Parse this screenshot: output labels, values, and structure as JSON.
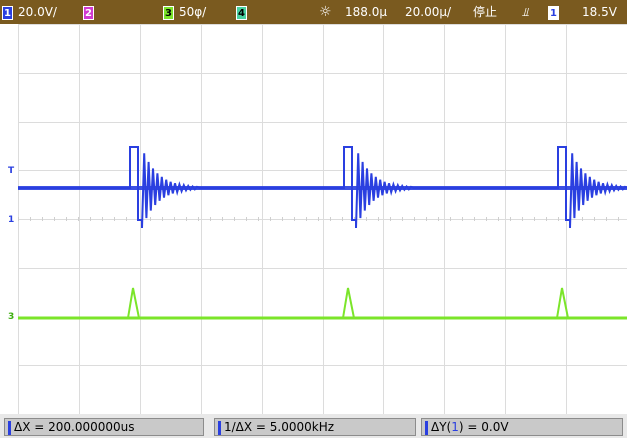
{
  "topbar": {
    "ch1_badge": "1",
    "ch1_scale": "20.0V/",
    "ch2_badge": "2",
    "ch3_badge": "3",
    "ch3_scale": "50φ/",
    "ch4_badge": "4",
    "trigger_icon": "sun-icon",
    "time_offset": "188.0µ",
    "time_scale": "20.00µ/",
    "status": "停止",
    "edge_icon": "rising-edge-icon",
    "edge_glyph": "⫫",
    "trig_ch_badge": "1",
    "trig_level": "18.5V"
  },
  "markers": {
    "trigger_T": "T",
    "ch1": "1",
    "ch3": "3"
  },
  "cursors": {
    "delta_x": "ΔX = 200.000000us",
    "inv_delta_x": "1/ΔX = 5.0000kHz",
    "delta_y_prefix": "ΔY(",
    "delta_y_ch": "1",
    "delta_y_suffix": ") = 0.0V"
  },
  "colors": {
    "ch1": "#2a3fe0",
    "ch3": "#7be52a",
    "topbar": "#7a5a1f"
  }
}
